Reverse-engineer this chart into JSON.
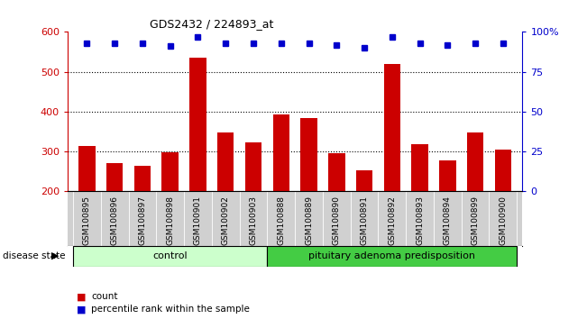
{
  "title": "GDS2432 / 224893_at",
  "samples": [
    "GSM100895",
    "GSM100896",
    "GSM100897",
    "GSM100898",
    "GSM100901",
    "GSM100902",
    "GSM100903",
    "GSM100888",
    "GSM100889",
    "GSM100890",
    "GSM100891",
    "GSM100892",
    "GSM100893",
    "GSM100894",
    "GSM100899",
    "GSM100900"
  ],
  "counts": [
    315,
    272,
    264,
    298,
    535,
    347,
    322,
    393,
    385,
    296,
    252,
    520,
    318,
    278,
    348,
    305
  ],
  "percentiles": [
    93,
    93,
    93,
    91,
    97,
    93,
    93,
    93,
    93,
    92,
    90,
    97,
    93,
    92,
    93,
    93
  ],
  "control_count": 7,
  "ylim_left": [
    200,
    600
  ],
  "ylim_right": [
    0,
    100
  ],
  "yticks_left": [
    200,
    300,
    400,
    500,
    600
  ],
  "yticks_right": [
    0,
    25,
    50,
    75,
    100
  ],
  "bar_color": "#cc0000",
  "dot_color": "#0000cc",
  "control_label": "control",
  "disease_label": "pituitary adenoma predisposition",
  "control_color": "#ccffcc",
  "disease_color": "#44cc44",
  "legend_count_label": "count",
  "legend_pct_label": "percentile rank within the sample",
  "disease_state_label": "disease state",
  "background_color": "#ffffff",
  "tick_area_color": "#d0d0d0"
}
